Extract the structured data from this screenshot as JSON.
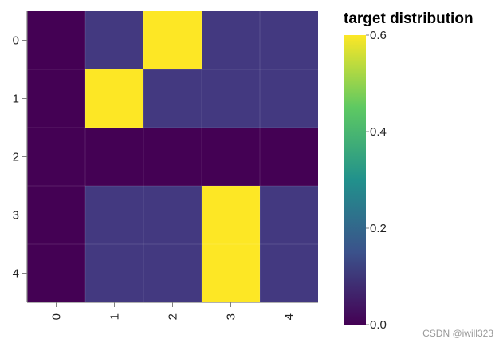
{
  "chart_data": {
    "type": "heatmap",
    "title": "",
    "xlabel": "",
    "ylabel": "",
    "x_categories": [
      "0",
      "1",
      "2",
      "3",
      "4"
    ],
    "y_categories": [
      "0",
      "1",
      "2",
      "3",
      "4"
    ],
    "values": [
      [
        0.0,
        0.1,
        0.6,
        0.1,
        0.1
      ],
      [
        0.0,
        0.6,
        0.1,
        0.1,
        0.1
      ],
      [
        0.0,
        0.0,
        0.0,
        0.0,
        0.0
      ],
      [
        0.0,
        0.1,
        0.1,
        0.6,
        0.1
      ],
      [
        0.0,
        0.1,
        0.1,
        0.6,
        0.1
      ]
    ],
    "colorscale": "viridis",
    "zlim": [
      0,
      0.6
    ],
    "legend": {
      "title": "target distribution",
      "ticks": [
        "0.0",
        "0.2",
        "0.4",
        "0.6"
      ],
      "tick_values": [
        0.0,
        0.2,
        0.4,
        0.6
      ],
      "placement": "right"
    },
    "x_tick_rotation": "vertical"
  },
  "watermark": "CSDN @iwill323"
}
